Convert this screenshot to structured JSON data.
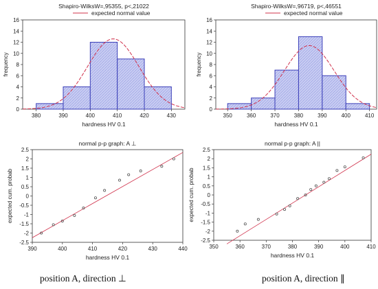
{
  "colors": {
    "bar_fill": "#c9cdf2",
    "bar_hatch": "#9aa2e6",
    "bar_stroke": "#3b3fb8",
    "curve": "#d0304a",
    "marker": "#555555",
    "axis": "#333333"
  },
  "captions": {
    "left": "position A, direction ⊥",
    "right": "position A, direction ∥"
  },
  "chart_data": [
    {
      "type": "bar",
      "subtype": "histogram",
      "title": "Shapiro-WilksW=,95355, p<,21022",
      "legend": "expected normal value",
      "legend_position": "top",
      "xlabel": "hardness HV 0.1",
      "ylabel": "frequency",
      "bin_edges": [
        380,
        390,
        400,
        410,
        420,
        430
      ],
      "values": [
        1,
        4,
        12,
        9,
        4
      ],
      "xlim": [
        375,
        435
      ],
      "ylim": [
        0,
        16
      ],
      "xticks": [
        380,
        390,
        400,
        410,
        420,
        430
      ],
      "yticks": [
        0,
        2,
        4,
        6,
        8,
        10,
        12,
        14,
        16
      ],
      "normal_curve": {
        "mean": 408.5,
        "sd": 9.5,
        "n": 30,
        "bin_width": 10
      },
      "grid": false
    },
    {
      "type": "bar",
      "subtype": "histogram",
      "title": "Shapiro-WilksW=,96719, p<,46551",
      "legend": "expected normal value",
      "legend_position": "top",
      "xlabel": "hardness HV 0.1",
      "ylabel": "frequency",
      "bin_edges": [
        350,
        360,
        370,
        380,
        390,
        400,
        410
      ],
      "values": [
        1,
        2,
        7,
        13,
        6,
        1
      ],
      "xlim": [
        345,
        413
      ],
      "ylim": [
        0,
        16
      ],
      "xticks": [
        350,
        360,
        370,
        380,
        390,
        400,
        410
      ],
      "yticks": [
        0,
        2,
        4,
        6,
        8,
        10,
        12,
        14,
        16
      ],
      "normal_curve": {
        "mean": 384.5,
        "sd": 10.5,
        "n": 30,
        "bin_width": 10
      },
      "grid": false
    },
    {
      "type": "scatter",
      "title": "normal p-p graph: A ⊥",
      "xlabel": "hardness HV 0.1",
      "ylabel": "expected cum. probab",
      "xlim": [
        390,
        440
      ],
      "ylim": [
        -2.5,
        2.5
      ],
      "xticks": [
        390,
        400,
        410,
        420,
        430,
        440
      ],
      "yticks": [
        -2.5,
        -2.0,
        -1.5,
        -1.0,
        -0.5,
        0.0,
        0.5,
        1.0,
        1.5,
        2.0,
        2.5
      ],
      "points": [
        [
          393,
          -2.0
        ],
        [
          397,
          -1.55
        ],
        [
          400,
          -1.35
        ],
        [
          404,
          -1.05
        ],
        [
          407,
          -0.65
        ],
        [
          411,
          -0.1
        ],
        [
          414,
          0.3
        ],
        [
          419,
          0.85
        ],
        [
          422,
          1.15
        ],
        [
          426,
          1.35
        ],
        [
          433,
          1.6
        ],
        [
          437,
          2.0
        ]
      ],
      "reference_line": {
        "x": [
          390,
          440
        ],
        "y": [
          -2.25,
          2.35
        ]
      },
      "grid": false
    },
    {
      "type": "scatter",
      "title": "normal p-p graph: A ||",
      "xlabel": "hardness HV 0.1",
      "ylabel": "expected cum. probab",
      "xlim": [
        350,
        410
      ],
      "ylim": [
        -2.5,
        2.5
      ],
      "xticks": [
        350,
        360,
        370,
        380,
        390,
        400,
        410
      ],
      "yticks": [
        -2.5,
        -2.0,
        -1.5,
        -1.0,
        -0.5,
        0.0,
        0.5,
        1.0,
        1.5,
        2.0,
        2.5
      ],
      "points": [
        [
          359,
          -2.0
        ],
        [
          362,
          -1.6
        ],
        [
          367,
          -1.35
        ],
        [
          374,
          -1.05
        ],
        [
          377,
          -0.8
        ],
        [
          379,
          -0.6
        ],
        [
          382,
          -0.2
        ],
        [
          385,
          0.0
        ],
        [
          387,
          0.3
        ],
        [
          389,
          0.5
        ],
        [
          392,
          0.7
        ],
        [
          394,
          0.9
        ],
        [
          397,
          1.35
        ],
        [
          400,
          1.55
        ],
        [
          407,
          2.05
        ]
      ],
      "reference_line": {
        "x": [
          355,
          410
        ],
        "y": [
          -2.7,
          2.25
        ]
      },
      "grid": false
    }
  ]
}
